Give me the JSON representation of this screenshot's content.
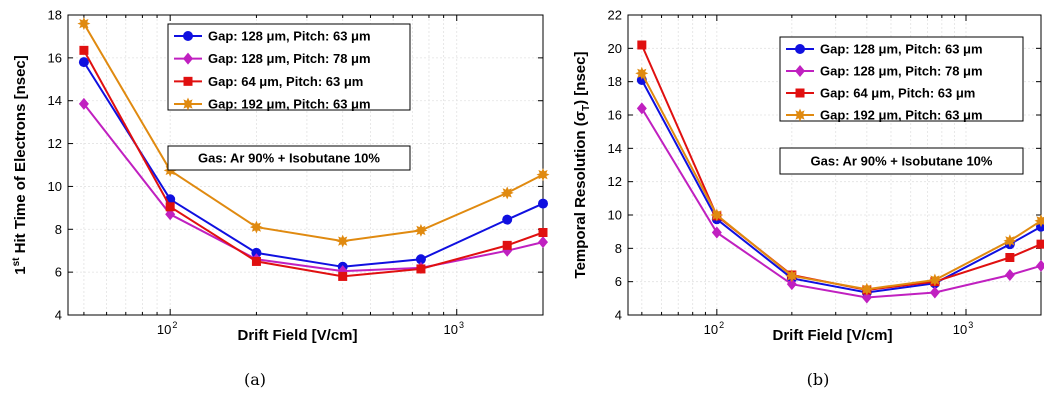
{
  "chart_data": [
    {
      "type": "line",
      "panel_caption": "(a)",
      "xlabel": "Drift Field [V/cm]",
      "ylabel_prefix": "1",
      "ylabel_sup": "st",
      "ylabel_rest": " Hit Time of Electrons [nsec]",
      "xscale": "log",
      "xlim": [
        44,
        2000
      ],
      "ylim": [
        4,
        18
      ],
      "yticks": [
        4,
        6,
        8,
        10,
        12,
        14,
        16,
        18
      ],
      "xtick_labels": [
        {
          "value": 100,
          "exp": "2"
        },
        {
          "value": 1000,
          "exp": "3"
        }
      ],
      "grid": true,
      "legend_position": "top-right",
      "annotation": "Gas: Ar 90% + Isobutane 10%",
      "x": [
        50,
        100,
        200,
        400,
        750,
        1500,
        2000
      ],
      "series": [
        {
          "name": "Gap: 128 μm, Pitch: 63 μm",
          "color": "#1010e0",
          "marker": "circle",
          "values": [
            15.8,
            9.4,
            6.9,
            6.25,
            6.6,
            8.45,
            9.2
          ]
        },
        {
          "name": "Gap: 128 μm, Pitch: 78 μm",
          "color": "#c020c0",
          "marker": "diamond",
          "values": [
            13.85,
            8.7,
            6.6,
            6.05,
            6.2,
            7.0,
            7.4
          ]
        },
        {
          "name": "Gap: 64 μm, Pitch: 63 μm",
          "color": "#e01010",
          "marker": "square",
          "values": [
            16.35,
            9.05,
            6.5,
            5.8,
            6.15,
            7.25,
            7.85
          ]
        },
        {
          "name": "Gap: 192 μm, Pitch: 63 μm",
          "color": "#e08a10",
          "marker": "star",
          "values": [
            17.6,
            10.75,
            8.1,
            7.45,
            7.95,
            9.7,
            10.55
          ]
        }
      ]
    },
    {
      "type": "line",
      "panel_caption": "(b)",
      "xlabel": "Drift Field [V/cm]",
      "ylabel_prefix": "Temporal Resolution (σ",
      "ylabel_sub": "T",
      "ylabel_rest": ") [nsec]",
      "xscale": "log",
      "xlim": [
        44,
        2000
      ],
      "ylim": [
        4,
        22
      ],
      "yticks": [
        4,
        6,
        8,
        10,
        12,
        14,
        16,
        18,
        20,
        22
      ],
      "xtick_labels": [
        {
          "value": 100,
          "exp": "2"
        },
        {
          "value": 1000,
          "exp": "3"
        }
      ],
      "grid": true,
      "legend_position": "top-right",
      "annotation": "Gas: Ar 90% + Isobutane 10%",
      "x": [
        50,
        100,
        200,
        400,
        750,
        1500,
        2000
      ],
      "series": [
        {
          "name": "Gap: 128 μm, Pitch: 63 μm",
          "color": "#1010e0",
          "marker": "circle",
          "values": [
            18.1,
            9.75,
            6.2,
            5.35,
            5.9,
            8.25,
            9.3
          ]
        },
        {
          "name": "Gap: 128 μm, Pitch: 78 μm",
          "color": "#c020c0",
          "marker": "diamond",
          "values": [
            16.4,
            8.95,
            5.85,
            5.05,
            5.35,
            6.4,
            6.95
          ]
        },
        {
          "name": "Gap: 64 μm, Pitch: 63 μm",
          "color": "#e01010",
          "marker": "square",
          "values": [
            20.2,
            9.95,
            6.4,
            5.5,
            6.0,
            7.45,
            8.25
          ]
        },
        {
          "name": "Gap: 192 μm, Pitch: 63 μm",
          "color": "#e08a10",
          "marker": "star",
          "values": [
            18.5,
            10.0,
            6.35,
            5.55,
            6.1,
            8.45,
            9.65
          ]
        }
      ]
    }
  ]
}
